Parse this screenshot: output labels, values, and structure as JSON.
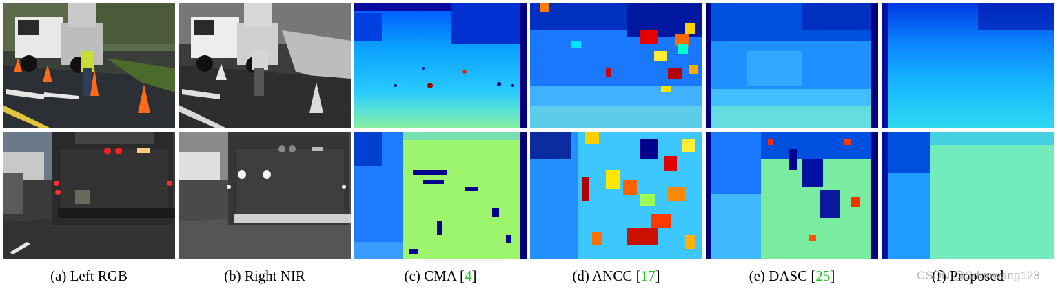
{
  "figure": {
    "panels": [
      {
        "prefix": "(a) ",
        "label": "Left RGB",
        "cite": ""
      },
      {
        "prefix": "(b) ",
        "label": "Right NIR",
        "cite": ""
      },
      {
        "prefix": "(c) ",
        "label": "CMA [",
        "cite": "4",
        "suffix": "]"
      },
      {
        "prefix": "(d) ",
        "label": "ANCC [",
        "cite": "17",
        "suffix": "]"
      },
      {
        "prefix": "(e) ",
        "label": "DASC [",
        "cite": "25",
        "suffix": "]"
      },
      {
        "prefix": "(f) ",
        "label": "Proposed",
        "cite": ""
      }
    ],
    "watermark": "CSDN @Sdunwang128",
    "colors": {
      "cite": "#22c422",
      "jet_dark": "#00007f",
      "jet_mid": "#00c8ff",
      "jet_high": "#b4ff4c"
    }
  }
}
